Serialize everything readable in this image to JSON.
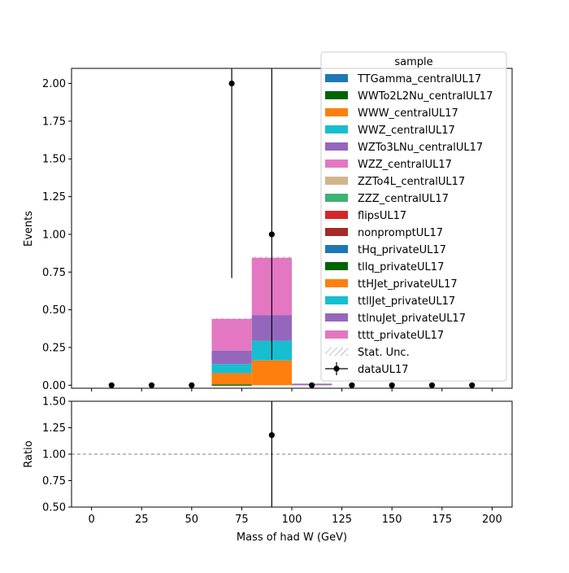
{
  "chart_data": {
    "type": "bar",
    "xlabel": "Mass of had W (GeV)",
    "ylabel_main": "Events",
    "ylabel_ratio": "Ratio",
    "xlim": [
      -10,
      210
    ],
    "ylim_main": [
      -0.02,
      2.1
    ],
    "ylim_ratio": [
      0.5,
      1.5
    ],
    "x_ticks": [
      0,
      25,
      50,
      75,
      100,
      125,
      150,
      175,
      200
    ],
    "y_ticks_main": [
      "0.00",
      "0.25",
      "0.50",
      "0.75",
      "1.00",
      "1.25",
      "1.50",
      "1.75",
      "2.00"
    ],
    "y_ticks_ratio": [
      "0.50",
      "0.75",
      "1.00",
      "1.25",
      "1.50"
    ],
    "legend_title": "sample",
    "legend_position": "top-right",
    "bins": [
      [
        60,
        80
      ],
      [
        80,
        100
      ],
      [
        100,
        120
      ]
    ],
    "series": [
      {
        "name": "TTGamma_centralUL17",
        "color": "#1f77b4",
        "values": [
          0,
          0,
          0
        ]
      },
      {
        "name": "WWTo2L2Nu_centralUL17",
        "color": "#006400",
        "values": [
          0,
          0,
          0
        ]
      },
      {
        "name": "WWW_centralUL17",
        "color": "#ff7f0e",
        "values": [
          0,
          0,
          0
        ]
      },
      {
        "name": "WWZ_centralUL17",
        "color": "#17becf",
        "values": [
          0,
          0,
          0
        ]
      },
      {
        "name": "WZTo3LNu_centralUL17",
        "color": "#9467bd",
        "values": [
          0,
          0,
          0.01
        ]
      },
      {
        "name": "WZZ_centralUL17",
        "color": "#e377c2",
        "values": [
          0,
          0,
          0
        ]
      },
      {
        "name": "ZZTo4L_centralUL17",
        "color": "#d2b48c",
        "values": [
          0,
          0,
          0
        ]
      },
      {
        "name": "ZZZ_centralUL17",
        "color": "#3cb371",
        "values": [
          0,
          0,
          0
        ]
      },
      {
        "name": "flipsUL17",
        "color": "#d62728",
        "values": [
          0,
          0,
          0
        ]
      },
      {
        "name": "nonpromptUL17",
        "color": "#a52a2a",
        "values": [
          0,
          0,
          0
        ]
      },
      {
        "name": "tHq_privateUL17",
        "color": "#1f77b4",
        "values": [
          0,
          0,
          0
        ]
      },
      {
        "name": "tllq_privateUL17",
        "color": "#006400",
        "values": [
          0.005,
          0,
          0
        ]
      },
      {
        "name": "ttHJet_privateUL17",
        "color": "#ff7f0e",
        "values": [
          0.075,
          0.165,
          0
        ]
      },
      {
        "name": "ttllJet_privateUL17",
        "color": "#17becf",
        "values": [
          0.06,
          0.13,
          0
        ]
      },
      {
        "name": "ttlnuJet_privateUL17",
        "color": "#9467bd",
        "values": [
          0.09,
          0.17,
          0
        ]
      },
      {
        "name": "tttt_privateUL17",
        "color": "#e377c2",
        "values": [
          0.21,
          0.38,
          0
        ]
      }
    ],
    "stat_unc_label": "Stat. Unc.",
    "data": {
      "name": "dataUL17",
      "x": [
        10,
        30,
        50,
        70,
        90,
        110,
        130,
        150,
        170,
        190
      ],
      "y": [
        0,
        0,
        0,
        2,
        1,
        0,
        0,
        0,
        0,
        0
      ],
      "yerr_low": [
        0,
        0,
        0,
        1.29,
        0.83,
        0,
        0,
        0,
        0,
        0
      ],
      "yerr_high": [
        0,
        0,
        0,
        2.64,
        2.3,
        0,
        0,
        0,
        0,
        0
      ]
    },
    "ratio": {
      "x": [
        90
      ],
      "y": [
        1.18
      ],
      "yerr_low": [
        0.98
      ],
      "yerr_high": [
        2.7
      ],
      "reference": 1.0
    }
  }
}
